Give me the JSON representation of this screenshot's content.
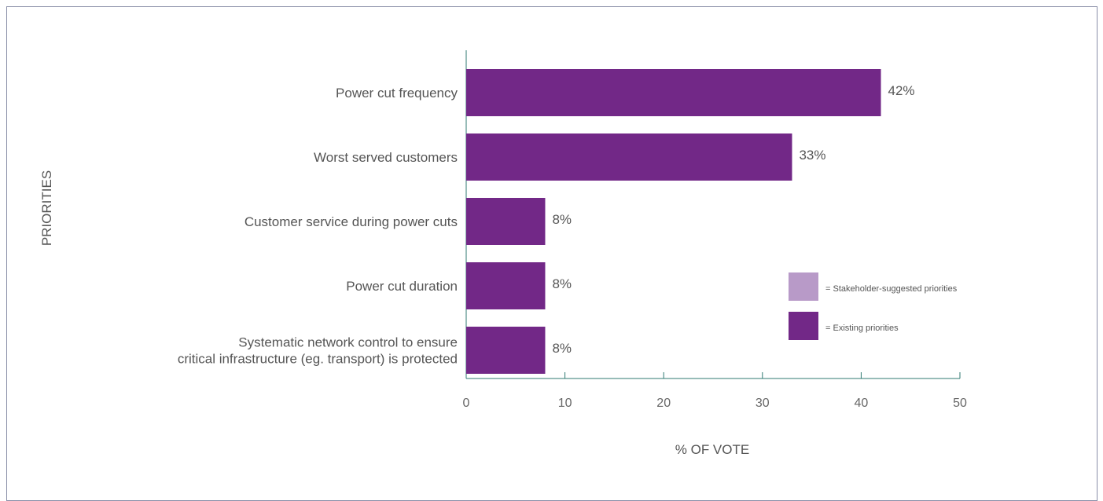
{
  "chart_data": {
    "type": "bar",
    "orientation": "horizontal",
    "categories": [
      [
        "Power cut frequency"
      ],
      [
        "Worst served customers"
      ],
      [
        "Customer service during power cuts"
      ],
      [
        "Power cut duration"
      ],
      [
        "Systematic network control to ensure",
        "critical infrastructure (eg. transport) is protected"
      ]
    ],
    "values": [
      42,
      33,
      8,
      8,
      8
    ],
    "value_labels": [
      "42%",
      "33%",
      "8%",
      "8%",
      "8%"
    ],
    "xlabel": "% OF VOTE",
    "ylabel": "PRIORITIES",
    "xlim": [
      0,
      50
    ],
    "xticks": [
      0,
      10,
      20,
      30,
      40,
      50
    ],
    "grid": false,
    "legend_position": "right",
    "legend": [
      {
        "label": "= Stakeholder-suggested priorities",
        "color": "#b89ac8"
      },
      {
        "label": "= Existing priorities",
        "color": "#722887"
      }
    ]
  },
  "colors": {
    "bar": "#722887",
    "axis": "#2f7a72",
    "text": "#555555",
    "frame": "#8a8fa8"
  }
}
